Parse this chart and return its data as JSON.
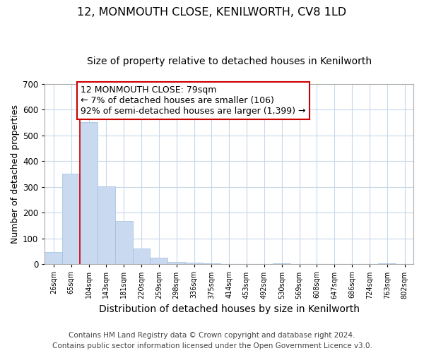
{
  "title": "12, MONMOUTH CLOSE, KENILWORTH, CV8 1LD",
  "subtitle": "Size of property relative to detached houses in Kenilworth",
  "xlabel": "Distribution of detached houses by size in Kenilworth",
  "ylabel": "Number of detached properties",
  "bin_labels": [
    "26sqm",
    "65sqm",
    "104sqm",
    "143sqm",
    "181sqm",
    "220sqm",
    "259sqm",
    "298sqm",
    "336sqm",
    "375sqm",
    "414sqm",
    "453sqm",
    "492sqm",
    "530sqm",
    "569sqm",
    "608sqm",
    "647sqm",
    "686sqm",
    "724sqm",
    "763sqm",
    "802sqm"
  ],
  "bar_heights": [
    47,
    352,
    551,
    302,
    167,
    60,
    25,
    10,
    5,
    3,
    0,
    0,
    0,
    3,
    0,
    0,
    0,
    0,
    0,
    3,
    0
  ],
  "bar_color": "#c9d9f0",
  "bar_edge_color": "#9dbfe0",
  "annotation_line1": "12 MONMOUTH CLOSE: 79sqm",
  "annotation_line2": "← 7% of detached houses are smaller (106)",
  "annotation_line3": "92% of semi-detached houses are larger (1,399) →",
  "annotation_box_color": "#ffffff",
  "annotation_box_edge_color": "#cc0000",
  "ylim": [
    0,
    700
  ],
  "yticks": [
    0,
    100,
    200,
    300,
    400,
    500,
    600,
    700
  ],
  "footer_line1": "Contains HM Land Registry data © Crown copyright and database right 2024.",
  "footer_line2": "Contains public sector information licensed under the Open Government Licence v3.0.",
  "bg_color": "#ffffff",
  "grid_color": "#c8d8ea",
  "title_fontsize": 11.5,
  "subtitle_fontsize": 10,
  "xlabel_fontsize": 10,
  "ylabel_fontsize": 9,
  "annotation_fontsize": 9,
  "footer_fontsize": 7.5
}
